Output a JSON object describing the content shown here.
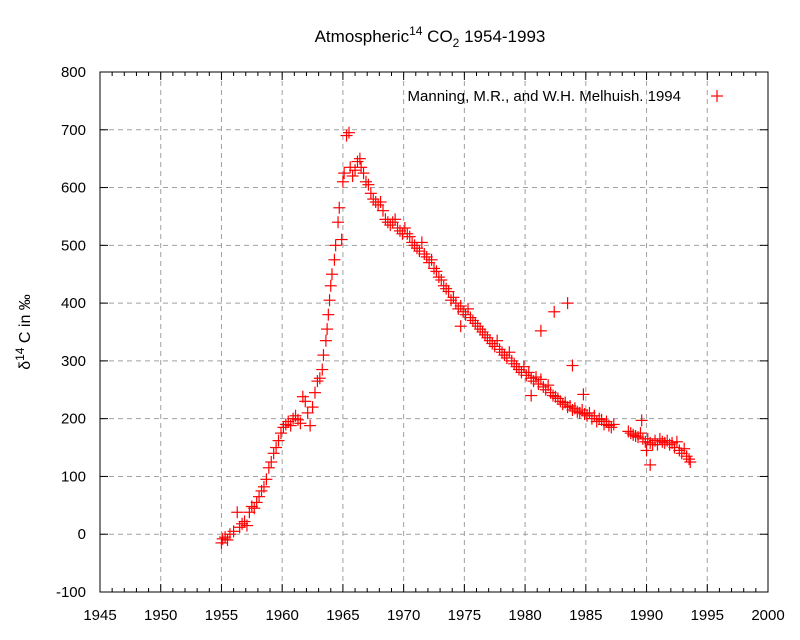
{
  "chart_data": {
    "type": "scatter",
    "title": {
      "main": "Atmospheric",
      "sup": "14",
      "mid": " CO",
      "sub": "2",
      "tail": " 1954-1993"
    },
    "xlabel": "",
    "ylabel": {
      "pre": "δ",
      "sup": "14",
      "post": " C in ‰"
    },
    "xlim": [
      1945,
      2000
    ],
    "ylim": [
      -100,
      800
    ],
    "xticks": [
      1945,
      1950,
      1955,
      1960,
      1965,
      1970,
      1975,
      1980,
      1985,
      1990,
      1995,
      2000
    ],
    "yticks": [
      -100,
      0,
      100,
      200,
      300,
      400,
      500,
      600,
      700,
      800
    ],
    "grid": true,
    "legend_position": "top-right",
    "series": [
      {
        "name": "Manning, M.R., and W.H. Melhuish. 1994",
        "marker": "plus",
        "color": "#ff0000",
        "points": [
          [
            1955.0,
            -15
          ],
          [
            1955.1,
            -8
          ],
          [
            1955.3,
            -5
          ],
          [
            1955.5,
            -10
          ],
          [
            1955.7,
            0
          ],
          [
            1956.0,
            5
          ],
          [
            1956.3,
            38
          ],
          [
            1956.5,
            12
          ],
          [
            1956.7,
            18
          ],
          [
            1956.9,
            22
          ],
          [
            1957.1,
            15
          ],
          [
            1957.3,
            38
          ],
          [
            1957.5,
            48
          ],
          [
            1957.7,
            45
          ],
          [
            1957.9,
            55
          ],
          [
            1958.1,
            65
          ],
          [
            1958.3,
            75
          ],
          [
            1958.5,
            82
          ],
          [
            1958.7,
            95
          ],
          [
            1958.9,
            115
          ],
          [
            1959.1,
            125
          ],
          [
            1959.3,
            140
          ],
          [
            1959.5,
            150
          ],
          [
            1959.7,
            162
          ],
          [
            1959.9,
            175
          ],
          [
            1960.1,
            185
          ],
          [
            1960.3,
            190
          ],
          [
            1960.5,
            195
          ],
          [
            1960.7,
            188
          ],
          [
            1960.9,
            200
          ],
          [
            1961.1,
            205
          ],
          [
            1961.3,
            198
          ],
          [
            1961.5,
            192
          ],
          [
            1961.7,
            238
          ],
          [
            1961.9,
            230
          ],
          [
            1962.1,
            210
          ],
          [
            1962.3,
            188
          ],
          [
            1962.5,
            220
          ],
          [
            1962.7,
            245
          ],
          [
            1962.9,
            265
          ],
          [
            1963.1,
            270
          ],
          [
            1963.3,
            285
          ],
          [
            1963.4,
            310
          ],
          [
            1963.6,
            335
          ],
          [
            1963.7,
            355
          ],
          [
            1963.8,
            380
          ],
          [
            1963.9,
            405
          ],
          [
            1964.0,
            430
          ],
          [
            1964.1,
            450
          ],
          [
            1964.3,
            475
          ],
          [
            1964.4,
            500
          ],
          [
            1964.6,
            540
          ],
          [
            1964.7,
            565
          ],
          [
            1964.9,
            510
          ],
          [
            1965.0,
            610
          ],
          [
            1965.1,
            625
          ],
          [
            1965.3,
            690
          ],
          [
            1965.5,
            695
          ],
          [
            1965.6,
            635
          ],
          [
            1965.8,
            620
          ],
          [
            1966.0,
            630
          ],
          [
            1966.2,
            645
          ],
          [
            1966.4,
            650
          ],
          [
            1966.5,
            635
          ],
          [
            1966.7,
            625
          ],
          [
            1966.9,
            610
          ],
          [
            1967.1,
            605
          ],
          [
            1967.3,
            590
          ],
          [
            1967.5,
            580
          ],
          [
            1967.7,
            575
          ],
          [
            1967.9,
            570
          ],
          [
            1968.1,
            575
          ],
          [
            1968.3,
            560
          ],
          [
            1968.5,
            545
          ],
          [
            1968.7,
            540
          ],
          [
            1968.9,
            535
          ],
          [
            1969.1,
            540
          ],
          [
            1969.3,
            545
          ],
          [
            1969.5,
            530
          ],
          [
            1969.7,
            525
          ],
          [
            1969.9,
            520
          ],
          [
            1970.1,
            530
          ],
          [
            1970.3,
            520
          ],
          [
            1970.5,
            515
          ],
          [
            1970.7,
            505
          ],
          [
            1970.9,
            500
          ],
          [
            1971.1,
            495
          ],
          [
            1971.3,
            490
          ],
          [
            1971.5,
            505
          ],
          [
            1971.7,
            485
          ],
          [
            1971.9,
            480
          ],
          [
            1972.1,
            470
          ],
          [
            1972.3,
            475
          ],
          [
            1972.5,
            460
          ],
          [
            1972.7,
            455
          ],
          [
            1972.9,
            445
          ],
          [
            1973.1,
            440
          ],
          [
            1973.3,
            430
          ],
          [
            1973.5,
            425
          ],
          [
            1973.7,
            420
          ],
          [
            1973.9,
            405
          ],
          [
            1974.1,
            410
          ],
          [
            1974.3,
            400
          ],
          [
            1974.5,
            390
          ],
          [
            1974.7,
            395
          ],
          [
            1974.9,
            385
          ],
          [
            1975.1,
            380
          ],
          [
            1975.3,
            390
          ],
          [
            1975.5,
            375
          ],
          [
            1975.7,
            370
          ],
          [
            1975.9,
            365
          ],
          [
            1976.1,
            360
          ],
          [
            1976.3,
            355
          ],
          [
            1976.5,
            350
          ],
          [
            1976.7,
            345
          ],
          [
            1976.9,
            340
          ],
          [
            1977.1,
            335
          ],
          [
            1977.3,
            330
          ],
          [
            1977.5,
            325
          ],
          [
            1977.7,
            335
          ],
          [
            1977.9,
            320
          ],
          [
            1978.1,
            315
          ],
          [
            1978.3,
            310
          ],
          [
            1978.5,
            305
          ],
          [
            1978.7,
            315
          ],
          [
            1978.9,
            300
          ],
          [
            1979.1,
            295
          ],
          [
            1979.3,
            290
          ],
          [
            1979.5,
            285
          ],
          [
            1979.7,
            280
          ],
          [
            1979.9,
            290
          ],
          [
            1980.1,
            275
          ],
          [
            1980.3,
            280
          ],
          [
            1980.5,
            270
          ],
          [
            1980.7,
            265
          ],
          [
            1980.9,
            272
          ],
          [
            1981.1,
            260
          ],
          [
            1981.3,
            268
          ],
          [
            1981.5,
            255
          ],
          [
            1981.7,
            250
          ],
          [
            1981.9,
            258
          ],
          [
            1982.1,
            245
          ],
          [
            1982.3,
            240
          ],
          [
            1982.5,
            238
          ],
          [
            1982.7,
            235
          ],
          [
            1982.9,
            230
          ],
          [
            1983.1,
            225
          ],
          [
            1983.3,
            228
          ],
          [
            1983.5,
            220
          ],
          [
            1983.7,
            222
          ],
          [
            1983.9,
            215
          ],
          [
            1984.1,
            218
          ],
          [
            1984.3,
            212
          ],
          [
            1984.5,
            210
          ],
          [
            1984.7,
            215
          ],
          [
            1984.9,
            208
          ],
          [
            1985.1,
            205
          ],
          [
            1985.3,
            210
          ],
          [
            1985.5,
            200
          ],
          [
            1985.7,
            205
          ],
          [
            1985.9,
            195
          ],
          [
            1986.1,
            200
          ],
          [
            1986.3,
            198
          ],
          [
            1986.5,
            190
          ],
          [
            1986.7,
            195
          ],
          [
            1986.9,
            188
          ],
          [
            1987.1,
            185
          ],
          [
            1987.3,
            190
          ],
          [
            1988.5,
            178
          ],
          [
            1988.7,
            175
          ],
          [
            1988.9,
            172
          ],
          [
            1989.1,
            170
          ],
          [
            1989.3,
            168
          ],
          [
            1989.5,
            175
          ],
          [
            1989.7,
            165
          ],
          [
            1989.9,
            160
          ],
          [
            1990.1,
            165
          ],
          [
            1990.3,
            158
          ],
          [
            1990.5,
            155
          ],
          [
            1990.7,
            162
          ],
          [
            1990.9,
            155
          ],
          [
            1991.1,
            165
          ],
          [
            1991.3,
            160
          ],
          [
            1991.5,
            158
          ],
          [
            1991.7,
            162
          ],
          [
            1991.9,
            155
          ],
          [
            1992.1,
            158
          ],
          [
            1992.3,
            150
          ],
          [
            1992.5,
            160
          ],
          [
            1992.7,
            145
          ],
          [
            1992.9,
            140
          ],
          [
            1993.1,
            148
          ],
          [
            1993.3,
            135
          ],
          [
            1993.5,
            130
          ],
          [
            1993.6,
            125
          ],
          [
            1974.7,
            360
          ],
          [
            1980.5,
            240
          ],
          [
            1981.3,
            352
          ],
          [
            1982.4,
            385
          ],
          [
            1983.5,
            400
          ],
          [
            1983.9,
            292
          ],
          [
            1984.8,
            242
          ],
          [
            1989.6,
            197
          ],
          [
            1990.0,
            145
          ],
          [
            1990.3,
            120
          ]
        ]
      }
    ]
  }
}
